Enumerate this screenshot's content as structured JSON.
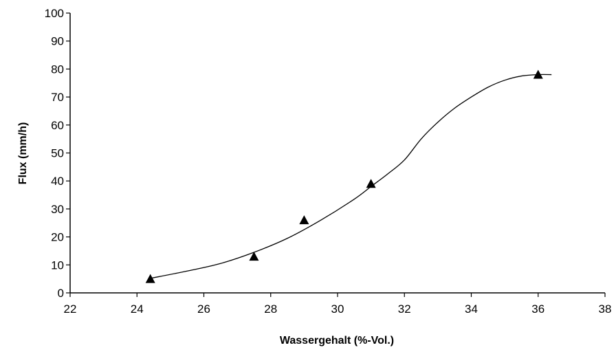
{
  "chart_data": {
    "type": "scatter",
    "title": "",
    "xlabel": "Wassergehalt (%-Vol.)",
    "ylabel": "Flux (mm/h)",
    "xlim": [
      22,
      38
    ],
    "ylim": [
      0,
      100
    ],
    "xticks": [
      "22",
      "24",
      "26",
      "28",
      "30",
      "32",
      "34",
      "36",
      "38"
    ],
    "yticks": [
      "0",
      "10",
      "20",
      "30",
      "40",
      "50",
      "60",
      "70",
      "80",
      "90",
      "100"
    ],
    "grid": false,
    "legend": "none",
    "marker": "triangle",
    "marker_color": "#000000",
    "series": [
      {
        "points": [
          {
            "x": 24.4,
            "y": 5
          },
          {
            "x": 27.5,
            "y": 13
          },
          {
            "x": 29.0,
            "y": 26
          },
          {
            "x": 31.0,
            "y": 39
          },
          {
            "x": 36.0,
            "y": 78
          }
        ]
      }
    ],
    "fit_curve": {
      "type": "smooth",
      "color": "#000000",
      "points": [
        {
          "x": 24.4,
          "y": 5.2
        },
        {
          "x": 25.5,
          "y": 7.8
        },
        {
          "x": 26.5,
          "y": 10.5
        },
        {
          "x": 27.5,
          "y": 14.5
        },
        {
          "x": 28.5,
          "y": 19.5
        },
        {
          "x": 29.5,
          "y": 26.0
        },
        {
          "x": 30.5,
          "y": 33.5
        },
        {
          "x": 31.0,
          "y": 38.0
        },
        {
          "x": 31.5,
          "y": 42.5
        },
        {
          "x": 32.0,
          "y": 47.5
        },
        {
          "x": 32.5,
          "y": 55.0
        },
        {
          "x": 33.0,
          "y": 61.0
        },
        {
          "x": 33.5,
          "y": 66.0
        },
        {
          "x": 34.0,
          "y": 70.0
        },
        {
          "x": 34.5,
          "y": 73.5
        },
        {
          "x": 35.0,
          "y": 76.0
        },
        {
          "x": 35.5,
          "y": 77.5
        },
        {
          "x": 36.0,
          "y": 78.0
        },
        {
          "x": 36.4,
          "y": 78.0
        }
      ]
    }
  }
}
